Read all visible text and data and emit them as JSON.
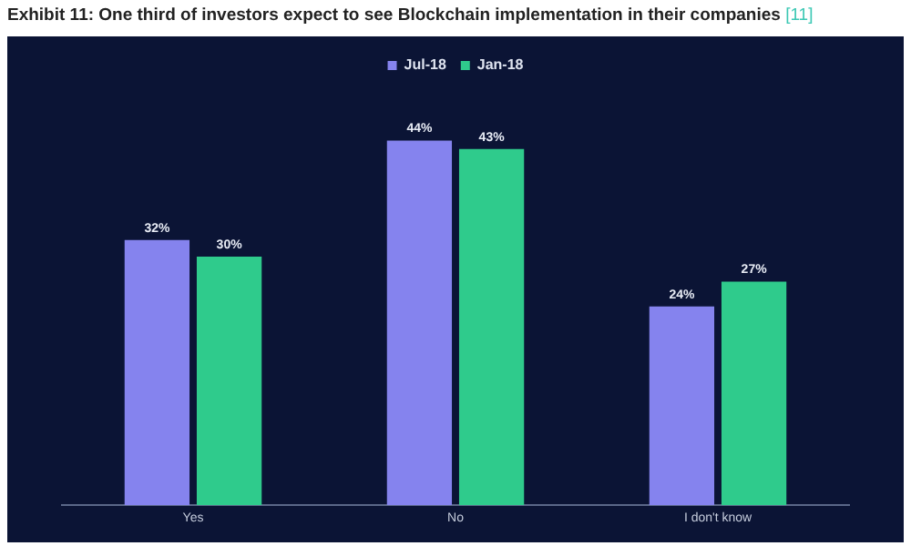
{
  "chart_data": {
    "type": "bar",
    "title": "Exhibit 11: One third of investors expect to see Blockchain implementation in their companies",
    "subtitle": "[11]",
    "categories": [
      "Yes",
      "No",
      "I don't know"
    ],
    "series": [
      {
        "name": "Jul-18",
        "color": "#8583ee",
        "values": [
          32,
          44,
          24
        ],
        "value_labels": [
          "32%",
          "44%",
          "24%"
        ]
      },
      {
        "name": "Jan-18",
        "color": "#2fcb8c",
        "values": [
          30,
          43,
          27
        ],
        "value_labels": [
          "30%",
          "43%",
          "27%"
        ]
      }
    ],
    "legend": "top",
    "grid": false,
    "tick_labels": "x"
  }
}
